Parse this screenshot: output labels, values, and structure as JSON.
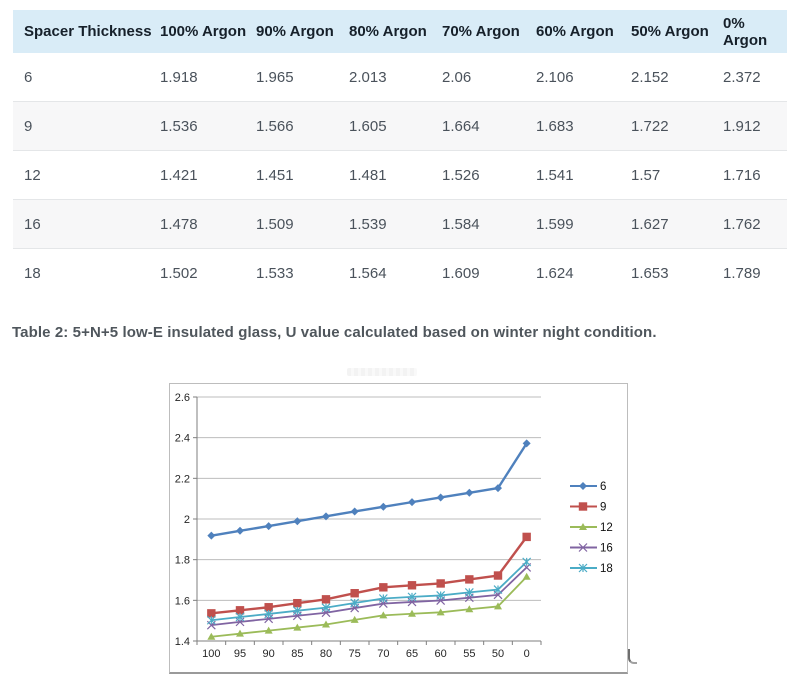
{
  "table": {
    "headers": [
      "Spacer Thickness",
      "100% Argon",
      "90% Argon",
      "80% Argon",
      "70% Argon",
      "60% Argon",
      "50% Argon",
      "0% Argon"
    ],
    "rows": [
      {
        "thickness": "6",
        "values": [
          "1.918",
          "1.965",
          "2.013",
          "2.06",
          "2.106",
          "2.152",
          "2.372"
        ]
      },
      {
        "thickness": "9",
        "values": [
          "1.536",
          "1.566",
          "1.605",
          "1.664",
          "1.683",
          "1.722",
          "1.912"
        ]
      },
      {
        "thickness": "12",
        "values": [
          "1.421",
          "1.451",
          "1.481",
          "1.526",
          "1.541",
          "1.57",
          "1.716"
        ]
      },
      {
        "thickness": "16",
        "values": [
          "1.478",
          "1.509",
          "1.539",
          "1.584",
          "1.599",
          "1.627",
          "1.762"
        ]
      },
      {
        "thickness": "18",
        "values": [
          "1.502",
          "1.533",
          "1.564",
          "1.609",
          "1.624",
          "1.653",
          "1.789"
        ]
      }
    ],
    "header_bg": "#d9ecf7",
    "stripe_bg": "#f7f7f8"
  },
  "caption": "Table 2: 5+N+5 low-E insulated glass, U value calculated based on winter night condition.",
  "chart_data": {
    "type": "line",
    "title": "",
    "xlabel": "",
    "ylabel": "",
    "x": [
      "100",
      "95",
      "90",
      "85",
      "80",
      "75",
      "70",
      "65",
      "60",
      "55",
      "50",
      "0"
    ],
    "series": [
      {
        "name": "6",
        "color": "#4F81BD",
        "marker": "diamond",
        "values": [
          1.918,
          1.942,
          1.965,
          1.989,
          2.013,
          2.037,
          2.06,
          2.083,
          2.106,
          2.129,
          2.152,
          2.372
        ]
      },
      {
        "name": "9",
        "color": "#C0504D",
        "marker": "square",
        "values": [
          1.536,
          1.551,
          1.566,
          1.586,
          1.605,
          1.635,
          1.664,
          1.674,
          1.683,
          1.703,
          1.722,
          1.912
        ]
      },
      {
        "name": "12",
        "color": "#9BBB59",
        "marker": "triangle",
        "values": [
          1.421,
          1.436,
          1.451,
          1.466,
          1.481,
          1.504,
          1.526,
          1.534,
          1.541,
          1.556,
          1.57,
          1.716
        ]
      },
      {
        "name": "16",
        "color": "#8064A2",
        "marker": "x",
        "values": [
          1.478,
          1.494,
          1.509,
          1.524,
          1.539,
          1.562,
          1.584,
          1.592,
          1.599,
          1.613,
          1.627,
          1.762
        ]
      },
      {
        "name": "18",
        "color": "#4BACC6",
        "marker": "asterisk",
        "values": [
          1.502,
          1.518,
          1.533,
          1.549,
          1.564,
          1.587,
          1.609,
          1.617,
          1.624,
          1.639,
          1.653,
          1.789
        ]
      }
    ],
    "ylim": [
      1.4,
      2.6
    ],
    "ytick_step": 0.2,
    "grid": true,
    "legend_position": "right"
  }
}
